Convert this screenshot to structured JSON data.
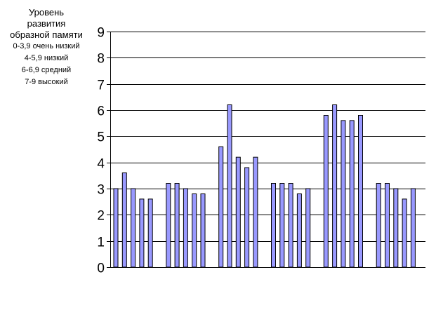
{
  "legend": {
    "lines": [
      "Уровень",
      "развития",
      "образной памяти",
      "0-3,9 очень низкий",
      "4-5,9 низкий",
      "6-6,9 средний",
      "7-9 высокий"
    ]
  },
  "chart_data": {
    "type": "bar",
    "title": "",
    "xlabel": "",
    "ylabel": "Уровень развития образной памяти",
    "ylim": [
      0,
      9
    ],
    "yticks": [
      0,
      1,
      2,
      3,
      4,
      5,
      6,
      7,
      8,
      9
    ],
    "grid": "horizontal",
    "bar_color": "#9999ff",
    "groups": [
      [
        3.0,
        3.6,
        3.0,
        2.6,
        2.6
      ],
      [
        3.2,
        3.2,
        3.0,
        2.8,
        2.8
      ],
      [
        4.6,
        6.2,
        4.2,
        3.8,
        4.2
      ],
      [
        3.2,
        3.2,
        3.2,
        2.8,
        3.0
      ],
      [
        5.8,
        6.2,
        5.6,
        5.6,
        5.8
      ],
      [
        3.2,
        3.2,
        3.0,
        2.6,
        3.0
      ]
    ]
  }
}
